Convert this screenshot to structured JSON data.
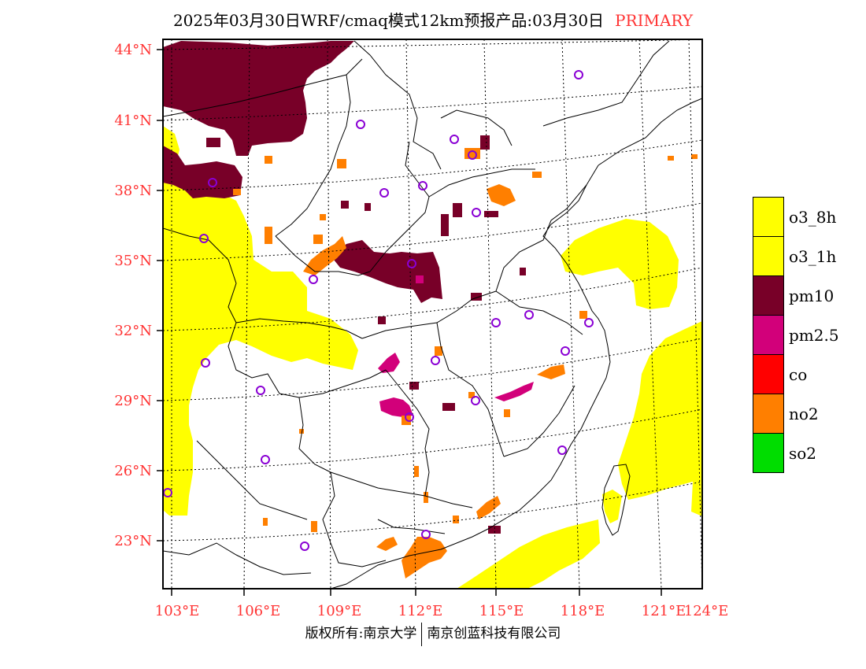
{
  "header": {
    "title": "2025年03月30日WRF/cmaq模式12km预报产品:03月30日",
    "tag": "PRIMARY"
  },
  "axes": {
    "lat_labels": [
      "44°N",
      "41°N",
      "38°N",
      "35°N",
      "32°N",
      "29°N",
      "26°N",
      "23°N"
    ],
    "lon_labels": [
      "103°E",
      "106°E",
      "109°E",
      "112°E",
      "115°E",
      "118°E",
      "121°E",
      "124°E"
    ]
  },
  "legend": {
    "items": [
      {
        "label": "o3_8h",
        "color": "#ffff00"
      },
      {
        "label": "o3_1h",
        "color": "#ffff00"
      },
      {
        "label": "pm10",
        "color": "#780028"
      },
      {
        "label": "pm2.5",
        "color": "#d2007a"
      },
      {
        "label": "co",
        "color": "#ff0000"
      },
      {
        "label": "no2",
        "color": "#ff7f00"
      },
      {
        "label": "so2",
        "color": "#00dd00"
      }
    ]
  },
  "footer": {
    "left": "版权所有:南京大学",
    "right": "南京创蓝科技有限公司"
  },
  "map": {
    "station_marker": "circle-marker-icon",
    "colors": {
      "o3": "#ffff00",
      "pm10": "#780028",
      "pm25": "#d2007a",
      "no2": "#ff7f00",
      "marker": "#8a00d4"
    }
  }
}
